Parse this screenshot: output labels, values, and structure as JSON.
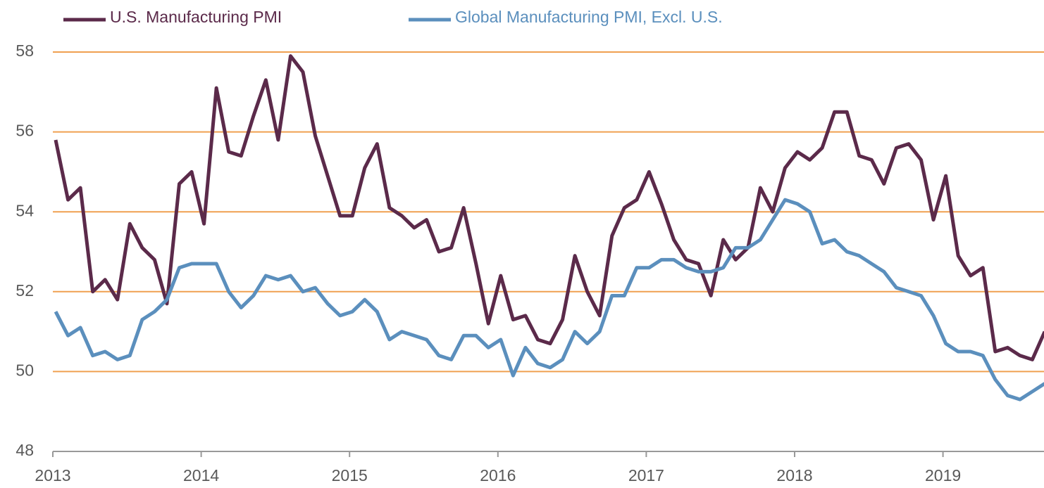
{
  "chart_data": {
    "type": "line",
    "categories": [
      "2013",
      null,
      null,
      null,
      null,
      null,
      null,
      null,
      null,
      null,
      null,
      null,
      "2014",
      null,
      null,
      null,
      null,
      null,
      null,
      null,
      null,
      null,
      null,
      null,
      "2015",
      null,
      null,
      null,
      null,
      null,
      null,
      null,
      null,
      null,
      null,
      null,
      "2016",
      null,
      null,
      null,
      null,
      null,
      null,
      null,
      null,
      null,
      null,
      null,
      "2017",
      null,
      null,
      null,
      null,
      null,
      null,
      null,
      null,
      null,
      null,
      null,
      "2018",
      null,
      null,
      null,
      null,
      null,
      null,
      null,
      null,
      null,
      null,
      null,
      "2019",
      null,
      null,
      null,
      null,
      null,
      null,
      null,
      null
    ],
    "series": [
      {
        "name": "U.S. Manufacturing PMI",
        "color": "#5b2a4a",
        "values": [
          55.8,
          54.3,
          54.6,
          52.0,
          52.3,
          51.8,
          53.7,
          53.1,
          52.8,
          51.7,
          54.7,
          55.0,
          53.7,
          57.1,
          55.5,
          55.4,
          56.4,
          57.3,
          55.8,
          57.9,
          57.5,
          55.9,
          54.9,
          53.9,
          53.9,
          55.1,
          55.7,
          54.1,
          53.9,
          53.6,
          53.8,
          53.0,
          53.1,
          54.1,
          52.7,
          51.2,
          52.4,
          51.3,
          51.4,
          50.8,
          50.7,
          51.3,
          52.9,
          52.0,
          51.4,
          53.4,
          54.1,
          54.3,
          55.0,
          54.2,
          53.3,
          52.8,
          52.7,
          51.9,
          53.3,
          52.8,
          53.1,
          54.6,
          54.0,
          55.1,
          55.5,
          55.3,
          55.6,
          56.5,
          56.5,
          55.4,
          55.3,
          54.7,
          55.6,
          55.7,
          55.3,
          53.8,
          54.9,
          52.9,
          52.4,
          52.6,
          50.5,
          50.6,
          50.4,
          50.3,
          51.0
        ]
      },
      {
        "name": "Global Manufacturing PMI, Excl. U.S.",
        "color": "#5b8fbd",
        "values": [
          51.5,
          50.9,
          51.1,
          50.4,
          50.5,
          50.3,
          50.4,
          51.3,
          51.5,
          51.8,
          52.6,
          52.7,
          52.7,
          52.7,
          52.0,
          51.6,
          51.9,
          52.4,
          52.3,
          52.4,
          52.0,
          52.1,
          51.7,
          51.4,
          51.5,
          51.8,
          51.5,
          50.8,
          51.0,
          50.9,
          50.8,
          50.4,
          50.3,
          50.9,
          50.9,
          50.6,
          50.8,
          49.9,
          50.6,
          50.2,
          50.1,
          50.3,
          51.0,
          50.7,
          51.0,
          51.9,
          51.9,
          52.6,
          52.6,
          52.8,
          52.8,
          52.6,
          52.5,
          52.5,
          52.6,
          53.1,
          53.1,
          53.3,
          53.8,
          54.3,
          54.2,
          54.0,
          53.2,
          53.3,
          53.0,
          52.9,
          52.7,
          52.5,
          52.1,
          52.0,
          51.9,
          51.4,
          50.7,
          50.5,
          50.5,
          50.4,
          49.8,
          49.4,
          49.3,
          49.5,
          49.7
        ]
      }
    ],
    "ylim": [
      48,
      58
    ],
    "yticks": [
      48,
      50,
      52,
      54,
      56,
      58
    ],
    "grid": true,
    "grid_color": "#f0a050"
  }
}
